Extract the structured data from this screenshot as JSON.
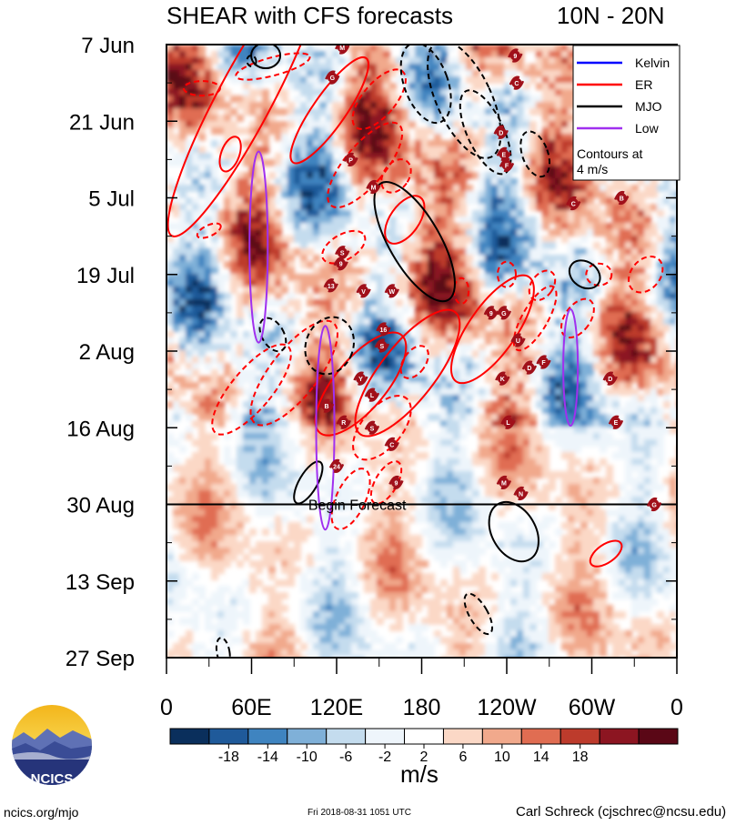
{
  "header": {
    "title": "SHEAR with CFS forecasts",
    "region": "10N - 20N"
  },
  "chart_data": {
    "type": "heatmap",
    "title": "SHEAR with CFS forecasts",
    "subtitle": "10N - 20N",
    "xlabel": "",
    "ylabel": "",
    "x_ticks": [
      "0",
      "60E",
      "120E",
      "180",
      "120W",
      "60W",
      "0"
    ],
    "x_range_deg": [
      0,
      360
    ],
    "y_ticks": [
      "7 Jun",
      "21 Jun",
      "5 Jul",
      "19 Jul",
      "2 Aug",
      "16 Aug",
      "30 Aug",
      "13 Sep",
      "27 Sep"
    ],
    "y_range_days_from_7jun": [
      0,
      112
    ],
    "forecast_start_day": 84,
    "forecast_label": "Begin Forecast",
    "units": "m/s",
    "colorbar": {
      "ticks": [
        "-18",
        "-14",
        "-10",
        "-6",
        "-2",
        "2",
        "6",
        "10",
        "14",
        "18"
      ],
      "colors": [
        "#0a2f5c",
        "#1f5a9a",
        "#3f84c0",
        "#7fb0d8",
        "#c4dcee",
        "#eef5fb",
        "#ffffff",
        "#fbd8c6",
        "#f1a98c",
        "#e06d52",
        "#bd3b2c",
        "#8c1521",
        "#5a0716"
      ]
    },
    "legend": {
      "placement": "top-right",
      "items": [
        {
          "label": "Kelvin",
          "color": "#0000ff"
        },
        {
          "label": "ER",
          "color": "#ff0000"
        },
        {
          "label": "MJO",
          "color": "#000000"
        },
        {
          "label": "Low",
          "color": "#a030ef"
        }
      ],
      "note": "Contours at\n4 m/s"
    },
    "storm_labels": [
      {
        "label": "M",
        "lon": 124,
        "day": 0.5
      },
      {
        "label": "9",
        "lon": 246,
        "day": 2
      },
      {
        "label": "G",
        "lon": 117,
        "day": 6
      },
      {
        "label": "C",
        "lon": 247,
        "day": 7
      },
      {
        "label": "D",
        "lon": 236,
        "day": 16
      },
      {
        "label": "E",
        "lon": 238,
        "day": 20
      },
      {
        "label": "F",
        "lon": 240,
        "day": 22
      },
      {
        "label": "P",
        "lon": 130,
        "day": 21
      },
      {
        "label": "M",
        "lon": 146,
        "day": 26
      },
      {
        "label": "B",
        "lon": 321,
        "day": 28
      },
      {
        "label": "C",
        "lon": 287,
        "day": 29
      },
      {
        "label": "S",
        "lon": 124,
        "day": 38
      },
      {
        "label": "9",
        "lon": 123,
        "day": 40
      },
      {
        "label": "13",
        "lon": 116,
        "day": 44
      },
      {
        "label": "V",
        "lon": 139,
        "day": 45
      },
      {
        "label": "W",
        "lon": 159,
        "day": 45
      },
      {
        "label": "9",
        "lon": 229,
        "day": 49
      },
      {
        "label": "G",
        "lon": 238,
        "day": 49
      },
      {
        "label": "16",
        "lon": 153,
        "day": 52
      },
      {
        "label": "S",
        "lon": 152,
        "day": 55
      },
      {
        "label": "U",
        "lon": 248,
        "day": 54
      },
      {
        "label": "D",
        "lon": 256,
        "day": 59
      },
      {
        "label": "F",
        "lon": 266,
        "day": 58
      },
      {
        "label": "Y",
        "lon": 137,
        "day": 61
      },
      {
        "label": "K",
        "lon": 237,
        "day": 61
      },
      {
        "label": "D",
        "lon": 313,
        "day": 61
      },
      {
        "label": "L",
        "lon": 145,
        "day": 64
      },
      {
        "label": "B",
        "lon": 113,
        "day": 66
      },
      {
        "label": "R",
        "lon": 125,
        "day": 69
      },
      {
        "label": "S",
        "lon": 145,
        "day": 70
      },
      {
        "label": "L",
        "lon": 241,
        "day": 69
      },
      {
        "label": "E",
        "lon": 317,
        "day": 69
      },
      {
        "label": "C",
        "lon": 159,
        "day": 73
      },
      {
        "label": "24",
        "lon": 120,
        "day": 77
      },
      {
        "label": "M",
        "lon": 238,
        "day": 80
      },
      {
        "label": "N",
        "lon": 250,
        "day": 82
      },
      {
        "label": "9",
        "lon": 162,
        "day": 80
      },
      {
        "label": "G",
        "lon": 344,
        "day": 84
      }
    ]
  },
  "footer": {
    "site": "ncics.org/mjo",
    "timestamp": "Fri 2018-08-31 1051 UTC",
    "author": "Carl Schreck (cjschrec@ncsu.edu)",
    "logo_text": "NCICS"
  }
}
